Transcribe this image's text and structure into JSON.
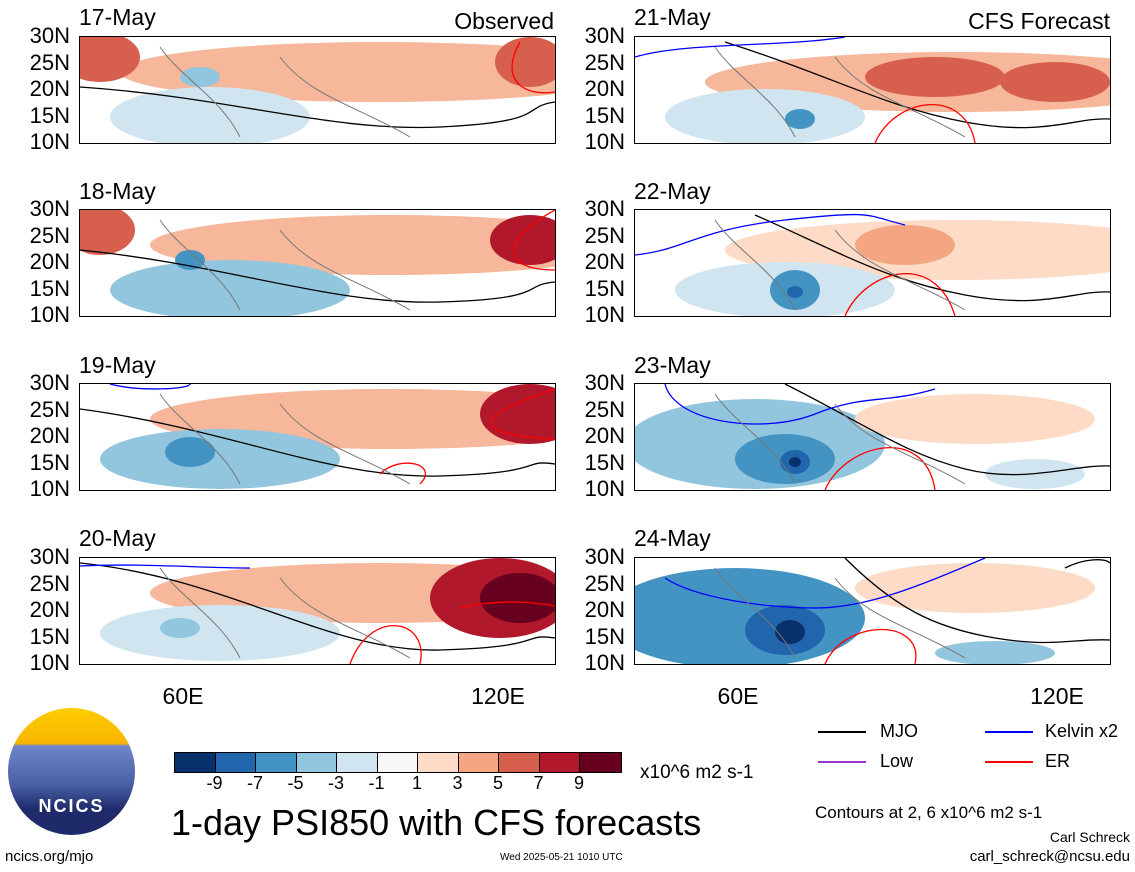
{
  "header": {
    "observed_label": "Observed",
    "forecast_label": "CFS Forecast"
  },
  "panels": [
    {
      "date": "17-May"
    },
    {
      "date": "18-May"
    },
    {
      "date": "19-May"
    },
    {
      "date": "20-May"
    },
    {
      "date": "21-May"
    },
    {
      "date": "22-May"
    },
    {
      "date": "23-May"
    },
    {
      "date": "24-May"
    }
  ],
  "y_ticks": [
    "30N",
    "25N",
    "20N",
    "15N",
    "10N"
  ],
  "x_ticks": [
    "60E",
    "120E"
  ],
  "legend": {
    "items": [
      {
        "label": "MJO",
        "color": "#000000"
      },
      {
        "label": "Kelvin x2",
        "color": "#0000ff"
      },
      {
        "label": "Low",
        "color": "#9932cc"
      },
      {
        "label": "ER",
        "color": "#ff0000"
      }
    ]
  },
  "colorbar": {
    "colors": [
      "#08306b",
      "#2166ac",
      "#4393c3",
      "#92c5de",
      "#d1e5f0",
      "#f7f7f7",
      "#fddbc7",
      "#f4a582",
      "#d6604d",
      "#b2182b",
      "#67001f"
    ],
    "labels": [
      "-9",
      "-7",
      "-5",
      "-3",
      "-1",
      "1",
      "3",
      "5",
      "7",
      "9"
    ],
    "units": "x10^6 m2 s-1"
  },
  "footer": {
    "logo_text": "NCICS",
    "title": "1-day PSI850 with CFS forecasts",
    "contours_note": "Contours at 2, 6 x10^6 m2 s-1",
    "author": "Carl Schreck",
    "email": "carl_schreck@ncsu.edu",
    "url": "ncics.org/mjo",
    "timestamp": "Wed 2025-05-21 1010 UTC"
  }
}
